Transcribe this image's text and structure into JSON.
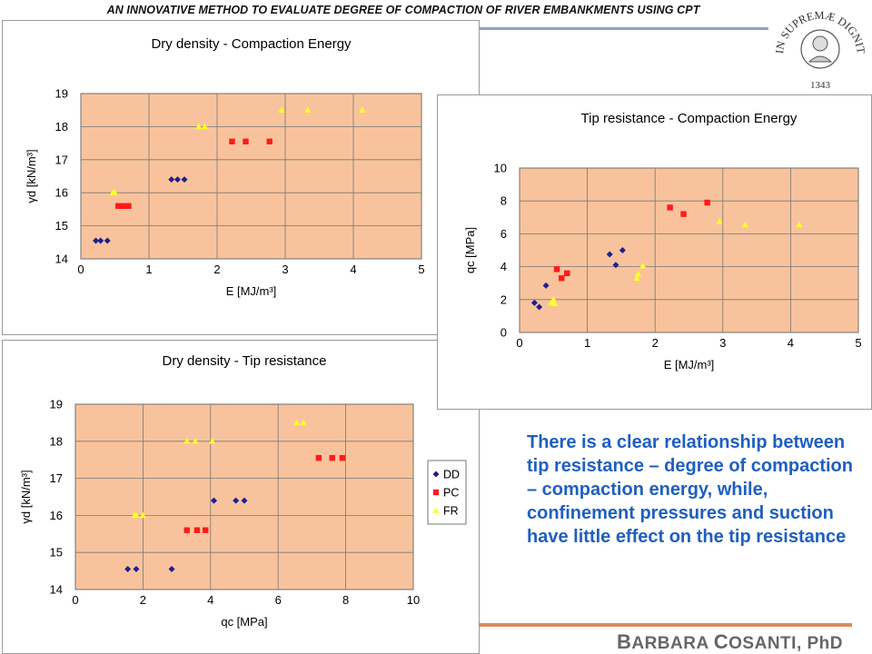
{
  "slide": {
    "title": "AN INNOVATIVE METHOD TO EVALUATE DEGREE OF COMPACTION OF RIVER  EMBANKMENTS USING CPT",
    "author": "Barbara Cosanti, PhD",
    "author_parts": [
      "B",
      "ARBARA ",
      "C",
      "OSANTI",
      ", PhD"
    ],
    "seal_top": "IN SUPREMÆ DIGNITATIS",
    "seal_year": "1343",
    "note": "There is a clear relationship between tip resistance  – degree of compaction  – compaction energy, while, confinement pressures and suction have little effect on the tip resistance",
    "colors": {
      "plot_bg": "#f8c39c",
      "dd": "#1f1f8f",
      "pc": "#ff1a1a",
      "fr": "#ffff2a",
      "note": "#1f5fbf"
    }
  },
  "chart_data": [
    {
      "type": "scatter",
      "title": "Dry density - Compaction Energy",
      "xlabel": "E [MJ/m³]",
      "ylabel": "γd [kN/m³]",
      "xlim": [
        0,
        5
      ],
      "ylim": [
        14,
        19
      ],
      "xticks": [
        0,
        1,
        2,
        3,
        4,
        5
      ],
      "yticks": [
        14,
        15,
        16,
        17,
        18,
        19
      ],
      "grid": true,
      "series": [
        {
          "name": "DD",
          "marker": "diamond",
          "x": [
            0.22,
            0.29,
            0.39,
            1.33,
            1.42,
            1.52
          ],
          "y": [
            14.55,
            14.55,
            14.55,
            16.4,
            16.4,
            16.4
          ]
        },
        {
          "name": "PC",
          "marker": "square",
          "x": [
            0.55,
            0.62,
            0.7,
            2.22,
            2.42,
            2.77
          ],
          "y": [
            15.6,
            15.6,
            15.6,
            17.55,
            17.55,
            17.55
          ]
        },
        {
          "name": "FR",
          "marker": "triangle",
          "x": [
            0.47,
            0.5,
            1.73,
            1.82,
            2.95,
            3.33,
            4.13
          ],
          "y": [
            16.0,
            16.0,
            18.0,
            18.0,
            18.5,
            18.5,
            18.5
          ]
        }
      ]
    },
    {
      "type": "scatter",
      "title": "Tip resistance - Compaction Energy",
      "xlabel": "E [MJ/m³]",
      "ylabel": "qc [MPa]",
      "xlim": [
        0,
        5
      ],
      "ylim": [
        0,
        10
      ],
      "xticks": [
        0,
        1,
        2,
        3,
        4,
        5
      ],
      "yticks": [
        0,
        2,
        4,
        6,
        8,
        10
      ],
      "grid": true,
      "series": [
        {
          "name": "DD",
          "marker": "diamond",
          "x": [
            0.22,
            0.29,
            0.39,
            1.33,
            1.42,
            1.52
          ],
          "y": [
            1.8,
            1.55,
            2.85,
            4.75,
            4.1,
            5.0
          ]
        },
        {
          "name": "PC",
          "marker": "square",
          "x": [
            0.55,
            0.62,
            0.7,
            2.22,
            2.42,
            2.77
          ],
          "y": [
            3.85,
            3.3,
            3.6,
            7.6,
            7.2,
            7.9
          ]
        },
        {
          "name": "FR",
          "marker": "triangle",
          "x": [
            0.47,
            0.5,
            0.52,
            1.73,
            1.75,
            1.82,
            2.95,
            3.33,
            4.13
          ],
          "y": [
            1.8,
            2.0,
            1.75,
            3.3,
            3.55,
            4.05,
            6.75,
            6.55,
            6.55
          ]
        }
      ]
    },
    {
      "type": "scatter",
      "title": "Dry density - Tip resistance",
      "xlabel": "qc [MPa]",
      "ylabel": "γd [kN/m³]",
      "xlim": [
        0,
        10
      ],
      "ylim": [
        14,
        19
      ],
      "xticks": [
        0,
        2,
        4,
        6,
        8,
        10
      ],
      "yticks": [
        14,
        15,
        16,
        17,
        18,
        19
      ],
      "grid": true,
      "legend": "right",
      "series": [
        {
          "name": "DD",
          "marker": "diamond",
          "x": [
            1.55,
            1.8,
            2.85,
            4.1,
            4.75,
            5.0
          ],
          "y": [
            14.55,
            14.55,
            14.55,
            16.4,
            16.4,
            16.4
          ]
        },
        {
          "name": "PC",
          "marker": "square",
          "x": [
            3.3,
            3.6,
            3.85,
            7.2,
            7.6,
            7.9
          ],
          "y": [
            15.6,
            15.6,
            15.6,
            17.55,
            17.55,
            17.55
          ]
        },
        {
          "name": "FR",
          "marker": "triangle",
          "x": [
            1.75,
            1.8,
            2.0,
            3.3,
            3.55,
            4.05,
            6.55,
            6.75
          ],
          "y": [
            16.0,
            16.0,
            16.0,
            18.0,
            18.0,
            18.0,
            18.5,
            18.5
          ]
        }
      ]
    }
  ]
}
